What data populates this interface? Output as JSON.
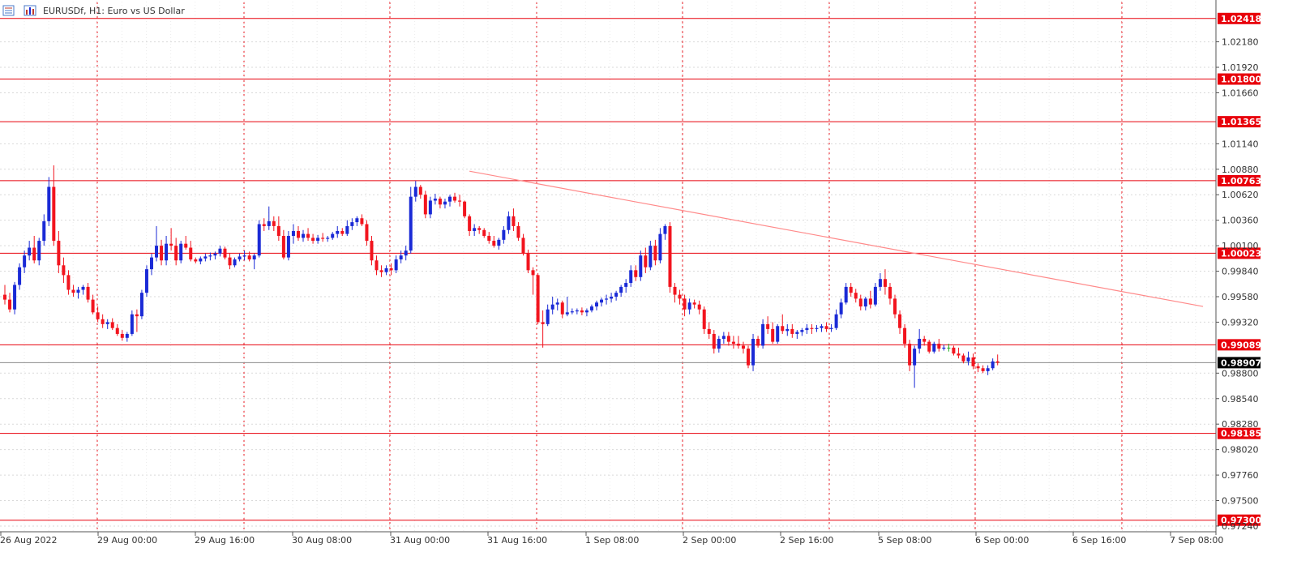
{
  "window": {
    "symbol_title": "EURUSDf, H1:  Euro vs US Dollar",
    "icons": [
      "orders-list-icon",
      "chart-bars-icon"
    ]
  },
  "colors": {
    "bull": "#1a2ad6",
    "bear": "#f2141e",
    "level_line": "#e8000b",
    "trendline": "#ff8a8a",
    "grid": "#d9d9d9",
    "vgrid": "#e8000b",
    "price_line": "#8a8a8a",
    "axis_text": "#333333",
    "tag_bg": "#e8000b",
    "current_tag_bg": "#000000",
    "doji": "#22aa22"
  },
  "chart_data": {
    "type": "candlestick",
    "title": "EURUSDf, H1:  Euro vs US Dollar",
    "y_ticks": [
      "1.02180",
      "1.01920",
      "1.01660",
      "1.01140",
      "1.00880",
      "1.00620",
      "1.00360",
      "1.00100",
      "0.99840",
      "0.99580",
      "0.99320",
      "0.98800",
      "0.98540",
      "0.98280",
      "0.98020",
      "0.97760",
      "0.97500",
      "0.97240"
    ],
    "ylim": [
      0.9719,
      1.0259
    ],
    "x_ticks": [
      "26 Aug 2022",
      "29 Aug 00:00",
      "29 Aug 16:00",
      "30 Aug 08:00",
      "31 Aug 00:00",
      "31 Aug 16:00",
      "1 Sep 08:00",
      "2 Sep 00:00",
      "2 Sep 16:00",
      "5 Sep 08:00",
      "6 Sep 00:00",
      "6 Sep 16:00",
      "7 Sep 08:00"
    ],
    "levels": [
      {
        "label": "1.02418",
        "value": 1.02418
      },
      {
        "label": "1.01800",
        "value": 1.018
      },
      {
        "label": "1.01365",
        "value": 1.01365
      },
      {
        "label": "1.00763",
        "value": 1.00763
      },
      {
        "label": "1.00023",
        "value": 1.00023
      },
      {
        "label": "0.99089",
        "value": 0.99089
      },
      {
        "label": "0.98185",
        "value": 0.98185
      },
      {
        "label": "0.97300",
        "value": 0.973
      }
    ],
    "current_price": {
      "label": "0.98907",
      "value": 0.98907
    },
    "trendline": {
      "start_bar": 95,
      "start_value": 1.0086,
      "end_bar": 245,
      "end_value": 0.9948
    },
    "grid": "dashed",
    "candles": [
      [
        0.996,
        0.997,
        0.995,
        0.9955
      ],
      [
        0.9955,
        0.9962,
        0.9942,
        0.9945
      ],
      [
        0.9945,
        0.9973,
        0.994,
        0.997
      ],
      [
        0.997,
        0.9992,
        0.9965,
        0.9988
      ],
      [
        0.9988,
        1.0005,
        0.9982,
        1.0
      ],
      [
        1.0,
        1.0015,
        0.9995,
        1.0008
      ],
      [
        1.0008,
        1.002,
        0.9992,
        0.9995
      ],
      [
        0.9995,
        1.0018,
        0.999,
        1.0015
      ],
      [
        1.0015,
        1.0042,
        1.001,
        1.0035
      ],
      [
        1.0035,
        1.008,
        1.003,
        1.007
      ],
      [
        1.007,
        1.0092,
        1.001,
        1.0015
      ],
      [
        1.0015,
        1.0025,
        0.9982,
        0.999
      ],
      [
        0.999,
        0.9998,
        0.9972,
        0.998
      ],
      [
        0.998,
        0.9985,
        0.996,
        0.9965
      ],
      [
        0.9965,
        0.997,
        0.9958,
        0.9962
      ],
      [
        0.9962,
        0.9968,
        0.9956,
        0.9965
      ],
      [
        0.9965,
        0.997,
        0.996,
        0.9968
      ],
      [
        0.9968,
        0.9972,
        0.9952,
        0.9955
      ],
      [
        0.9955,
        0.996,
        0.994,
        0.9942
      ],
      [
        0.9942,
        0.9948,
        0.9932,
        0.9935
      ],
      [
        0.9935,
        0.994,
        0.9926,
        0.993
      ],
      [
        0.993,
        0.9935,
        0.9925,
        0.9932
      ],
      [
        0.9932,
        0.9936,
        0.9924,
        0.9926
      ],
      [
        0.9926,
        0.993,
        0.9918,
        0.992
      ],
      [
        0.992,
        0.9924,
        0.9913,
        0.9916
      ],
      [
        0.9916,
        0.9922,
        0.9912,
        0.992
      ],
      [
        0.992,
        0.9944,
        0.9918,
        0.994
      ],
      [
        0.994,
        0.9945,
        0.9922,
        0.9938
      ],
      [
        0.9938,
        0.9965,
        0.9935,
        0.9962
      ],
      [
        0.9962,
        0.999,
        0.9958,
        0.9986
      ],
      [
        0.9986,
        1.0002,
        0.998,
        0.9998
      ],
      [
        0.9998,
        1.003,
        0.9994,
        1.001
      ],
      [
        1.001,
        1.0016,
        0.999,
        0.9995
      ],
      [
        0.9995,
        1.002,
        0.999,
        1.0012
      ],
      [
        1.0012,
        1.0028,
        1.0005,
        1.001
      ],
      [
        1.001,
        1.0018,
        0.999,
        0.9995
      ],
      [
        0.9995,
        1.0015,
        0.9992,
        1.0012
      ],
      [
        1.0012,
        1.002,
        1.0006,
        1.0008
      ],
      [
        1.0008,
        1.0015,
        0.9994,
        0.9996
      ],
      [
        0.9996,
        0.9998,
        0.9992,
        0.9994
      ],
      [
        0.9994,
        0.9999,
        0.9991,
        0.9997
      ],
      [
        0.9997,
        1.0002,
        0.9994,
        0.9999
      ],
      [
        0.9999,
        1.0003,
        0.9995,
        1.0
      ],
      [
        1.0,
        1.0004,
        0.9996,
        1.0002
      ],
      [
        1.0002,
        1.001,
        0.9999,
        1.0007
      ],
      [
        1.0007,
        1.0009,
        0.9996,
        0.9998
      ],
      [
        0.9998,
        1.0002,
        0.9986,
        0.999
      ],
      [
        0.999,
        0.9998,
        0.9988,
        0.9996
      ],
      [
        0.9996,
        1.0002,
        0.9994,
        0.9999
      ],
      [
        0.9999,
        1.0005,
        0.9995,
        1.0
      ],
      [
        1.0,
        1.0004,
        0.9994,
        0.9996
      ],
      [
        0.9996,
        1.0002,
        0.9986,
        1.0
      ],
      [
        1.0,
        1.0036,
        0.9998,
        1.0032
      ],
      [
        1.0032,
        1.0038,
        1.0025,
        1.003
      ],
      [
        1.003,
        1.005,
        1.0026,
        1.0035
      ],
      [
        1.0035,
        1.004,
        1.0025,
        1.003
      ],
      [
        1.003,
        1.004,
        1.0015,
        1.002
      ],
      [
        1.002,
        1.0026,
        0.9996,
        0.9998
      ],
      [
        0.9998,
        1.0025,
        0.9995,
        1.002
      ],
      [
        1.002,
        1.0032,
        1.0012,
        1.0025
      ],
      [
        1.0025,
        1.003,
        1.0015,
        1.0018
      ],
      [
        1.0018,
        1.0026,
        1.0014,
        1.0022
      ],
      [
        1.0022,
        1.0028,
        1.0015,
        1.0018
      ],
      [
        1.0018,
        1.0022,
        1.0012,
        1.0015
      ],
      [
        1.0015,
        1.0021,
        1.0012,
        1.0018
      ],
      [
        1.0018,
        1.0023,
        1.0014,
        1.0017
      ],
      [
        1.0017,
        1.002,
        1.0014,
        1.0018
      ],
      [
        1.0018,
        1.0024,
        1.0016,
        1.0022
      ],
      [
        1.0022,
        1.003,
        1.0018,
        1.0025
      ],
      [
        1.0025,
        1.0028,
        1.002,
        1.0022
      ],
      [
        1.0022,
        1.0036,
        1.002,
        1.003
      ],
      [
        1.003,
        1.0038,
        1.0026,
        1.0034
      ],
      [
        1.0034,
        1.004,
        1.003,
        1.0038
      ],
      [
        1.0038,
        1.0042,
        1.003,
        1.0032
      ],
      [
        1.0032,
        1.0036,
        1.001,
        1.0015
      ],
      [
        1.0015,
        1.002,
        0.999,
        0.9995
      ],
      [
        0.9995,
        1.0,
        0.998,
        0.9985
      ],
      [
        0.9985,
        0.999,
        0.9978,
        0.9983
      ],
      [
        0.9983,
        0.999,
        0.998,
        0.9987
      ],
      [
        0.9987,
        0.9992,
        0.998,
        0.9985
      ],
      [
        0.9985,
        1.0,
        0.9982,
        0.9996
      ],
      [
        0.9996,
        1.0005,
        0.9992,
        1.0
      ],
      [
        1.0,
        1.001,
        0.9995,
        1.0005
      ],
      [
        1.0005,
        1.007,
        1.0002,
        1.006
      ],
      [
        1.006,
        1.0076,
        1.0055,
        1.007
      ],
      [
        1.007,
        1.0072,
        1.0058,
        1.0062
      ],
      [
        1.0062,
        1.0066,
        1.0038,
        1.0042
      ],
      [
        1.0042,
        1.006,
        1.0038,
        1.0056
      ],
      [
        1.0056,
        1.0063,
        1.0052,
        1.0058
      ],
      [
        1.0058,
        1.006,
        1.0048,
        1.0052
      ],
      [
        1.0052,
        1.0058,
        1.0048,
        1.0055
      ],
      [
        1.0055,
        1.0062,
        1.005,
        1.006
      ],
      [
        1.006,
        1.0064,
        1.0054,
        1.0056
      ],
      [
        1.0056,
        1.0062,
        1.005,
        1.0055
      ],
      [
        1.0055,
        1.0056,
        1.0038,
        1.004
      ],
      [
        1.004,
        1.0042,
        1.002,
        1.0025
      ],
      [
        1.0025,
        1.0032,
        1.002,
        1.0028
      ],
      [
        1.0028,
        1.003,
        1.0022,
        1.0026
      ],
      [
        1.0026,
        1.0028,
        1.0018,
        1.002
      ],
      [
        1.002,
        1.0024,
        1.0012,
        1.0015
      ],
      [
        1.0015,
        1.002,
        1.0008,
        1.001
      ],
      [
        1.001,
        1.0018,
        1.0006,
        1.0016
      ],
      [
        1.0016,
        1.003,
        1.0012,
        1.0026
      ],
      [
        1.0026,
        1.0045,
        1.0022,
        1.004
      ],
      [
        1.004,
        1.0048,
        1.0025,
        1.003
      ],
      [
        1.003,
        1.0034,
        1.0015,
        1.0018
      ],
      [
        1.0018,
        1.0022,
        1.0,
        1.0002
      ],
      [
        1.0002,
        1.0006,
        0.9982,
        0.9985
      ],
      [
        0.9985,
        0.9988,
        0.996,
        0.998
      ],
      [
        0.998,
        0.9982,
        0.993,
        0.9932
      ],
      [
        0.9932,
        0.9944,
        0.9906,
        0.993
      ],
      [
        0.993,
        0.995,
        0.9928,
        0.9945
      ],
      [
        0.9945,
        0.9958,
        0.994,
        0.995
      ],
      [
        0.995,
        0.9956,
        0.9944,
        0.9952
      ],
      [
        0.9952,
        0.9954,
        0.9936,
        0.994
      ],
      [
        0.994,
        0.9958,
        0.9938,
        0.9942
      ],
      [
        0.9942,
        0.9946,
        0.994,
        0.9943
      ],
      [
        0.9943,
        0.9946,
        0.994,
        0.9944
      ],
      [
        0.9944,
        0.9947,
        0.9939,
        0.9942
      ],
      [
        0.9942,
        0.9946,
        0.9938,
        0.9944
      ],
      [
        0.9944,
        0.995,
        0.9942,
        0.9948
      ],
      [
        0.9948,
        0.9954,
        0.9944,
        0.9952
      ],
      [
        0.9952,
        0.9957,
        0.9948,
        0.9955
      ],
      [
        0.9955,
        0.996,
        0.995,
        0.9956
      ],
      [
        0.9956,
        0.9962,
        0.9952,
        0.9958
      ],
      [
        0.9958,
        0.9964,
        0.9954,
        0.9962
      ],
      [
        0.9962,
        0.997,
        0.9958,
        0.9968
      ],
      [
        0.9968,
        0.9976,
        0.9962,
        0.9972
      ],
      [
        0.9972,
        0.999,
        0.9968,
        0.9985
      ],
      [
        0.9985,
        0.999,
        0.9974,
        0.9978
      ],
      [
        0.9978,
        1.0005,
        0.9974,
        1.0
      ],
      [
        1.0,
        1.0008,
        0.9982,
        0.9988
      ],
      [
        0.9988,
        1.0015,
        0.9985,
        1.001
      ],
      [
        1.001,
        1.0016,
        0.999,
        0.9995
      ],
      [
        0.9995,
        1.0028,
        0.9992,
        1.0022
      ],
      [
        1.0022,
        1.0032,
        1.0016,
        1.003
      ],
      [
        1.003,
        1.0034,
        0.9962,
        0.9968
      ],
      [
        0.9968,
        0.9972,
        0.9952,
        0.996
      ],
      [
        0.996,
        0.9965,
        0.995,
        0.9956
      ],
      [
        0.9956,
        0.996,
        0.9938,
        0.9945
      ],
      [
        0.9945,
        0.9956,
        0.994,
        0.9952
      ],
      [
        0.9952,
        0.9955,
        0.9946,
        0.995
      ],
      [
        0.995,
        0.9954,
        0.994,
        0.9945
      ],
      [
        0.9945,
        0.9948,
        0.992,
        0.9925
      ],
      [
        0.9925,
        0.9932,
        0.9915,
        0.992
      ],
      [
        0.992,
        0.9924,
        0.99,
        0.9905
      ],
      [
        0.9905,
        0.9918,
        0.9901,
        0.9915
      ],
      [
        0.9915,
        0.9922,
        0.991,
        0.9918
      ],
      [
        0.9918,
        0.9922,
        0.9908,
        0.9912
      ],
      [
        0.9912,
        0.9918,
        0.9905,
        0.991
      ],
      [
        0.991,
        0.9918,
        0.9905,
        0.9908
      ],
      [
        0.9908,
        0.9912,
        0.99,
        0.9905
      ],
      [
        0.9905,
        0.9908,
        0.9885,
        0.9888
      ],
      [
        0.9888,
        0.992,
        0.9882,
        0.9915
      ],
      [
        0.9915,
        0.9918,
        0.9906,
        0.9908
      ],
      [
        0.9908,
        0.9935,
        0.9905,
        0.993
      ],
      [
        0.993,
        0.9938,
        0.992,
        0.9925
      ],
      [
        0.9925,
        0.9932,
        0.991,
        0.9912
      ],
      [
        0.9912,
        0.993,
        0.991,
        0.9928
      ],
      [
        0.9928,
        0.994,
        0.992,
        0.9923
      ],
      [
        0.9923,
        0.993,
        0.9918,
        0.9925
      ],
      [
        0.9925,
        0.993,
        0.9916,
        0.992
      ],
      [
        0.992,
        0.9924,
        0.9915,
        0.9922
      ],
      [
        0.9922,
        0.9926,
        0.9918,
        0.9924
      ],
      [
        0.9924,
        0.993,
        0.992,
        0.9926
      ],
      [
        0.9926,
        0.993,
        0.992,
        0.9925
      ],
      [
        0.9925,
        0.9929,
        0.9922,
        0.9926
      ],
      [
        0.9926,
        0.993,
        0.9922,
        0.9928
      ],
      [
        0.9928,
        0.9932,
        0.9922,
        0.9925
      ],
      [
        0.9925,
        0.993,
        0.9922,
        0.9926
      ],
      [
        0.9926,
        0.9945,
        0.9924,
        0.994
      ],
      [
        0.994,
        0.9956,
        0.9936,
        0.9952
      ],
      [
        0.9952,
        0.9972,
        0.995,
        0.9968
      ],
      [
        0.9968,
        0.9972,
        0.9958,
        0.9962
      ],
      [
        0.9962,
        0.9966,
        0.9952,
        0.9956
      ],
      [
        0.9956,
        0.996,
        0.9944,
        0.9948
      ],
      [
        0.9948,
        0.9958,
        0.9944,
        0.9956
      ],
      [
        0.9956,
        0.9964,
        0.9946,
        0.995
      ],
      [
        0.995,
        0.9972,
        0.9948,
        0.9968
      ],
      [
        0.9968,
        0.9982,
        0.9964,
        0.9976
      ],
      [
        0.9976,
        0.9986,
        0.996,
        0.9968
      ],
      [
        0.9968,
        0.9972,
        0.995,
        0.9956
      ],
      [
        0.9956,
        0.996,
        0.9936,
        0.994
      ],
      [
        0.994,
        0.9944,
        0.992,
        0.9926
      ],
      [
        0.9926,
        0.993,
        0.9906,
        0.991
      ],
      [
        0.991,
        0.9914,
        0.9882,
        0.9888
      ],
      [
        0.9888,
        0.9908,
        0.9865,
        0.9905
      ],
      [
        0.9905,
        0.9925,
        0.99,
        0.9915
      ],
      [
        0.9915,
        0.9918,
        0.9908,
        0.9912
      ],
      [
        0.9912,
        0.9914,
        0.99,
        0.9902
      ],
      [
        0.9902,
        0.9912,
        0.99,
        0.991
      ],
      [
        0.991,
        0.9915,
        0.9902,
        0.9905
      ],
      [
        0.9905,
        0.9909,
        0.9903,
        0.9906
      ],
      [
        0.9906,
        0.991,
        0.9902,
        0.9906
      ],
      [
        0.9906,
        0.9908,
        0.9898,
        0.99
      ],
      [
        0.99,
        0.9906,
        0.9895,
        0.9898
      ],
      [
        0.9898,
        0.99,
        0.989,
        0.9892
      ],
      [
        0.9892,
        0.9902,
        0.9888,
        0.9896
      ],
      [
        0.9896,
        0.99,
        0.9884,
        0.9887
      ],
      [
        0.9887,
        0.989,
        0.9881,
        0.9885
      ],
      [
        0.9885,
        0.9888,
        0.988,
        0.9882
      ],
      [
        0.9882,
        0.9888,
        0.9878,
        0.9885
      ],
      [
        0.9885,
        0.9895,
        0.9883,
        0.9892
      ],
      [
        0.9892,
        0.9899,
        0.9888,
        0.98907
      ]
    ]
  }
}
